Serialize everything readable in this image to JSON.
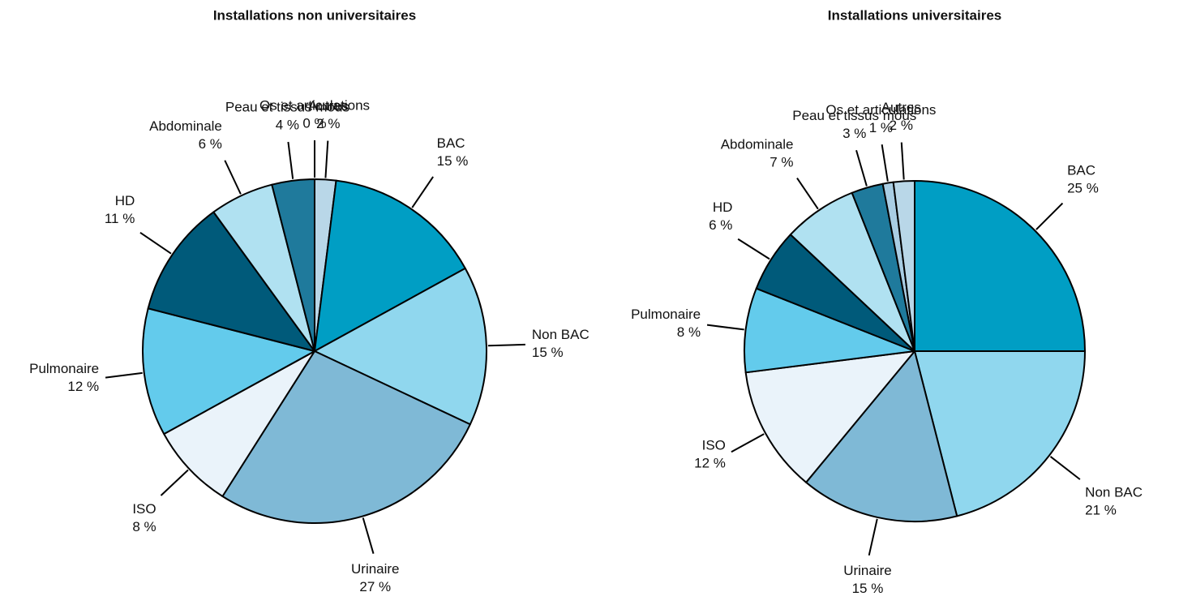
{
  "chart_data": [
    {
      "type": "pie",
      "title": "Installations non universitaires",
      "categories": [
        "Autres",
        "BAC",
        "Non BAC",
        "Urinaire",
        "ISO",
        "Pulmonaire",
        "HD",
        "Abdominale",
        "Peau et tissus mous",
        "Os et articulations"
      ],
      "values": [
        2,
        15,
        15,
        27,
        8,
        12,
        11,
        6,
        4,
        0
      ],
      "value_labels": [
        "2 %",
        "15 %",
        "15 %",
        "27 %",
        "8 %",
        "12 %",
        "11 %",
        "6 %",
        "4 %",
        "0 %"
      ],
      "colors": [
        "#b9d7e8",
        "#009ec4",
        "#90d7ee",
        "#7fb9d6",
        "#eaf3fa",
        "#63cbec",
        "#005a7a",
        "#b0e1f1",
        "#1f7a9c",
        "#4a8fb5"
      ]
    },
    {
      "type": "pie",
      "title": "Installations universitaires",
      "categories": [
        "BAC",
        "Non BAC",
        "Urinaire",
        "ISO",
        "Pulmonaire",
        "HD",
        "Abdominale",
        "Peau et tissus mous",
        "Os et articulations",
        "Autres"
      ],
      "values": [
        25,
        21,
        15,
        12,
        8,
        6,
        7,
        3,
        1,
        2
      ],
      "value_labels": [
        "25 %",
        "21 %",
        "15 %",
        "12 %",
        "8 %",
        "6 %",
        "7 %",
        "3 %",
        "1 %",
        "2 %"
      ],
      "colors": [
        "#009ec4",
        "#90d7ee",
        "#7fb9d6",
        "#eaf3fa",
        "#63cbec",
        "#005a7a",
        "#b0e1f1",
        "#1f7a9c",
        "#a9cde3",
        "#b9d7e8"
      ]
    }
  ]
}
